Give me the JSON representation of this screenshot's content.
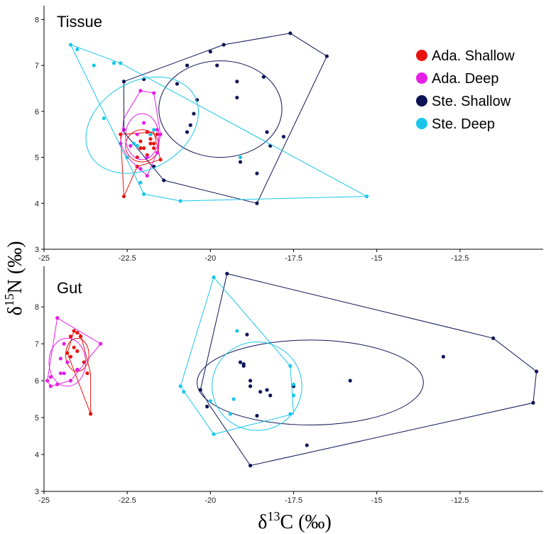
{
  "colors": {
    "ada_shallow": "#e8130f",
    "ada_deep": "#e61ee6",
    "ste_shallow": "#0d1456",
    "ste_deep": "#19c6ea"
  },
  "legend": [
    {
      "label": "Ada. Shallow",
      "color": "#e8130f"
    },
    {
      "label": "Ada. Deep",
      "color": "#e61ee6"
    },
    {
      "label": "Ste. Shallow",
      "color": "#0d1456"
    },
    {
      "label": "Ste. Deep",
      "color": "#19c6ea"
    }
  ],
  "xlabel": {
    "delta": "δ",
    "sup": "13",
    "rest": "C (‰)"
  },
  "ylabel": {
    "delta": "δ",
    "sup": "15",
    "rest": "N (‰)"
  },
  "chart_data": [
    {
      "type": "scatter",
      "title": "Tissue",
      "xlim": [
        -25,
        -10
      ],
      "ylim": [
        3,
        8.3
      ],
      "xticks": [
        "-25",
        "-22.5",
        "-20",
        "-17.5",
        "-15",
        "-12.5"
      ],
      "xtick_values": [
        -25,
        -22.5,
        -20,
        -17.5,
        -15,
        -12.5
      ],
      "yticks": [
        "3",
        "4",
        "5",
        "6",
        "7",
        "8"
      ],
      "ytick_values": [
        3,
        4,
        5,
        6,
        7,
        8
      ],
      "series": [
        {
          "name": "Ada. Shallow",
          "key": "ada_shallow",
          "points": [
            [
              -22.6,
              4.15
            ],
            [
              -22.7,
              5.5
            ],
            [
              -22.2,
              5.0
            ],
            [
              -22.0,
              5.2
            ],
            [
              -21.9,
              5.55
            ],
            [
              -21.8,
              5.3
            ],
            [
              -21.8,
              5.4
            ],
            [
              -21.7,
              5.3
            ],
            [
              -21.7,
              5.2
            ],
            [
              -21.6,
              5.5
            ],
            [
              -21.5,
              4.95
            ],
            [
              -21.9,
              5.05
            ],
            [
              -22.1,
              5.35
            ],
            [
              -22.2,
              4.8
            ],
            [
              -22.1,
              5.2
            ],
            [
              -21.8,
              5.5
            ]
          ],
          "hull": [
            [
              -22.6,
              4.15
            ],
            [
              -22.2,
              4.8
            ],
            [
              -21.5,
              4.95
            ],
            [
              -21.7,
              5.55
            ],
            [
              -22.7,
              5.5
            ]
          ],
          "ellipse": {
            "cx": -22.05,
            "cy": 5.25,
            "rx": 0.5,
            "ry": 0.35,
            "angle": 0
          }
        },
        {
          "name": "Ada. Deep",
          "key": "ada_deep",
          "points": [
            [
              -22.6,
              5.6
            ],
            [
              -22.2,
              5.5
            ],
            [
              -22.0,
              5.75
            ],
            [
              -21.6,
              5.6
            ],
            [
              -21.5,
              5.5
            ],
            [
              -22.5,
              5.0
            ],
            [
              -22.1,
              4.75
            ],
            [
              -21.9,
              5.0
            ],
            [
              -21.6,
              5.1
            ],
            [
              -21.9,
              4.6
            ],
            [
              -22.7,
              5.3
            ],
            [
              -22.1,
              6.45
            ],
            [
              -21.7,
              6.4
            ],
            [
              -22.4,
              5.25
            ]
          ],
          "hull": [
            [
              -22.7,
              5.3
            ],
            [
              -22.6,
              5.85
            ],
            [
              -22.1,
              6.45
            ],
            [
              -21.7,
              6.4
            ],
            [
              -21.5,
              5.5
            ],
            [
              -21.6,
              5.1
            ],
            [
              -21.9,
              4.6
            ],
            [
              -22.5,
              5.0
            ]
          ],
          "ellipse": {
            "cx": -22.05,
            "cy": 5.45,
            "rx": 0.5,
            "ry": 0.5,
            "angle": 0
          }
        },
        {
          "name": "Ste. Shallow",
          "key": "ste_shallow",
          "points": [
            [
              -22.6,
              6.65
            ],
            [
              -21.4,
              4.5
            ],
            [
              -21.0,
              6.6
            ],
            [
              -20.7,
              7.0
            ],
            [
              -20.6,
              5.7
            ],
            [
              -20.4,
              6.25
            ],
            [
              -20.0,
              7.3
            ],
            [
              -19.8,
              7.0
            ],
            [
              -19.6,
              7.45
            ],
            [
              -19.2,
              6.65
            ],
            [
              -19.2,
              6.3
            ],
            [
              -19.1,
              4.9
            ],
            [
              -18.6,
              4.65
            ],
            [
              -18.6,
              4.0
            ],
            [
              -18.4,
              6.75
            ],
            [
              -18.3,
              5.55
            ],
            [
              -18.2,
              5.25
            ],
            [
              -17.8,
              5.45
            ],
            [
              -17.6,
              7.7
            ],
            [
              -16.5,
              7.2
            ],
            [
              -22.0,
              6.7
            ],
            [
              -20.7,
              5.55
            ],
            [
              -20.5,
              5.95
            ],
            [
              -21.7,
              4.8
            ]
          ],
          "hull": [
            [
              -22.6,
              6.65
            ],
            [
              -19.6,
              7.45
            ],
            [
              -17.6,
              7.7
            ],
            [
              -16.5,
              7.2
            ],
            [
              -18.6,
              4.0
            ],
            [
              -21.4,
              4.5
            ],
            [
              -22.6,
              5.55
            ]
          ],
          "ellipse": {
            "cx": -19.7,
            "cy": 6.05,
            "rx": 1.85,
            "ry": 1.05,
            "angle": 0
          }
        },
        {
          "name": "Ste. Deep",
          "key": "ste_deep",
          "points": [
            [
              -24.2,
              7.45
            ],
            [
              -24.0,
              7.35
            ],
            [
              -23.5,
              7.0
            ],
            [
              -22.9,
              7.05
            ],
            [
              -22.7,
              7.05
            ],
            [
              -23.2,
              5.85
            ],
            [
              -22.5,
              5.0
            ],
            [
              -22.3,
              5.3
            ],
            [
              -22.1,
              4.45
            ],
            [
              -22.0,
              4.2
            ],
            [
              -20.9,
              4.05
            ],
            [
              -21.7,
              5.6
            ],
            [
              -21.8,
              5.5
            ],
            [
              -22.2,
              5.25
            ],
            [
              -19.1,
              5.0
            ],
            [
              -15.3,
              4.15
            ]
          ],
          "hull": [
            [
              -24.2,
              7.45
            ],
            [
              -22.7,
              7.05
            ],
            [
              -15.3,
              4.15
            ],
            [
              -20.9,
              4.05
            ],
            [
              -22.0,
              4.2
            ]
          ],
          "ellipse": {
            "cx": -22.05,
            "cy": 5.7,
            "rx": 1.8,
            "ry": 0.95,
            "angle": -30
          }
        }
      ],
      "legend_position": "top-right"
    },
    {
      "type": "scatter",
      "title": "Gut",
      "xlim": [
        -25,
        -10
      ],
      "ylim": [
        3,
        9.1
      ],
      "xticks": [
        "-25",
        "-22.5",
        "-20",
        "-17.5",
        "-15",
        "-12.5"
      ],
      "xtick_values": [
        -25,
        -22.5,
        -20,
        -17.5,
        -15,
        -12.5
      ],
      "yticks": [
        "3",
        "4",
        "5",
        "6",
        "7",
        "8"
      ],
      "ytick_values": [
        3,
        4,
        5,
        6,
        7,
        8
      ],
      "series": [
        {
          "name": "Ada. Shallow",
          "key": "ada_shallow",
          "points": [
            [
              -24.2,
              7.2
            ],
            [
              -24.1,
              7.35
            ],
            [
              -24.0,
              7.3
            ],
            [
              -23.9,
              7.2
            ],
            [
              -24.1,
              6.9
            ],
            [
              -24.0,
              6.8
            ],
            [
              -23.8,
              6.5
            ],
            [
              -24.0,
              6.3
            ],
            [
              -23.7,
              6.2
            ],
            [
              -23.6,
              5.1
            ],
            [
              -24.3,
              6.75
            ],
            [
              -24.2,
              6.65
            ]
          ],
          "hull": [
            [
              -24.3,
              6.75
            ],
            [
              -24.1,
              7.35
            ],
            [
              -23.9,
              7.25
            ],
            [
              -23.6,
              6.2
            ],
            [
              -23.6,
              5.1
            ]
          ],
          "ellipse": {
            "cx": -24.0,
            "cy": 6.7,
            "rx": 0.35,
            "ry": 0.45,
            "angle": 0
          }
        },
        {
          "name": "Ada. Deep",
          "key": "ada_deep",
          "points": [
            [
              -24.6,
              7.7
            ],
            [
              -24.5,
              6.6
            ],
            [
              -24.4,
              7.0
            ],
            [
              -24.9,
              6.0
            ],
            [
              -24.8,
              5.85
            ],
            [
              -24.6,
              5.9
            ],
            [
              -24.5,
              6.2
            ],
            [
              -24.2,
              6.0
            ],
            [
              -24.0,
              6.3
            ],
            [
              -23.3,
              7.0
            ],
            [
              -24.3,
              6.5
            ],
            [
              -24.4,
              6.2
            ],
            [
              -24.8,
              6.1
            ]
          ],
          "hull": [
            [
              -24.9,
              6.0
            ],
            [
              -24.6,
              7.7
            ],
            [
              -23.3,
              7.0
            ],
            [
              -24.2,
              6.0
            ],
            [
              -24.8,
              5.85
            ]
          ],
          "ellipse": {
            "cx": -24.3,
            "cy": 6.5,
            "rx": 0.55,
            "ry": 0.65,
            "angle": 0
          }
        },
        {
          "name": "Ste. Shallow",
          "key": "ste_shallow",
          "points": [
            [
              -19.5,
              8.9
            ],
            [
              -20.3,
              5.75
            ],
            [
              -20.1,
              5.3
            ],
            [
              -19.0,
              6.45
            ],
            [
              -19.0,
              6.4
            ],
            [
              -18.9,
              7.25
            ],
            [
              -18.5,
              5.7
            ],
            [
              -18.3,
              5.75
            ],
            [
              -18.2,
              5.6
            ],
            [
              -18.8,
              5.85
            ],
            [
              -18.6,
              5.05
            ],
            [
              -17.5,
              5.85
            ],
            [
              -17.1,
              4.25
            ],
            [
              -15.8,
              6.0
            ],
            [
              -13.0,
              6.65
            ],
            [
              -11.5,
              7.15
            ],
            [
              -10.2,
              6.25
            ],
            [
              -10.3,
              5.4
            ],
            [
              -18.8,
              3.7
            ],
            [
              -18.8,
              6.0
            ],
            [
              -19.1,
              6.5
            ]
          ],
          "hull": [
            [
              -19.5,
              8.9
            ],
            [
              -11.5,
              7.15
            ],
            [
              -10.2,
              6.25
            ],
            [
              -10.3,
              5.4
            ],
            [
              -18.8,
              3.7
            ],
            [
              -20.0,
              5.3
            ],
            [
              -20.3,
              5.75
            ]
          ],
          "ellipse": {
            "cx": -17.0,
            "cy": 5.95,
            "rx": 3.4,
            "ry": 1.15,
            "angle": 0
          }
        },
        {
          "name": "Ste. Deep",
          "key": "ste_deep",
          "points": [
            [
              -19.9,
              8.8
            ],
            [
              -20.9,
              5.85
            ],
            [
              -20.8,
              5.7
            ],
            [
              -20.0,
              5.45
            ],
            [
              -19.9,
              4.55
            ],
            [
              -19.4,
              5.1
            ],
            [
              -19.2,
              7.35
            ],
            [
              -19.3,
              5.5
            ],
            [
              -17.6,
              6.4
            ],
            [
              -17.5,
              5.9
            ],
            [
              -17.5,
              5.6
            ],
            [
              -17.6,
              5.1
            ]
          ],
          "hull": [
            [
              -19.9,
              8.8
            ],
            [
              -17.6,
              6.4
            ],
            [
              -17.5,
              5.1
            ],
            [
              -19.9,
              4.55
            ],
            [
              -20.9,
              5.85
            ]
          ],
          "ellipse": {
            "cx": -18.6,
            "cy": 5.85,
            "rx": 1.35,
            "ry": 1.2,
            "angle": 0
          }
        }
      ],
      "legend_position": "none"
    }
  ]
}
